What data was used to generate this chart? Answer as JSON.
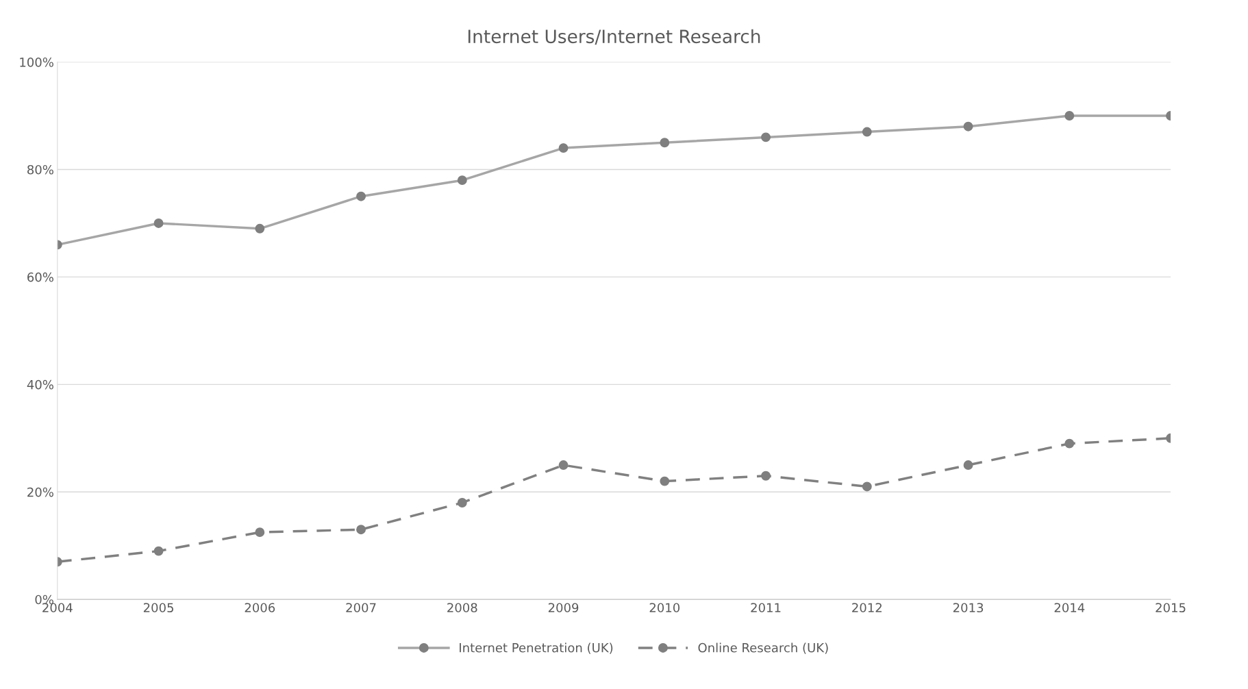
{
  "chart_data": {
    "type": "line",
    "title": "Internet Users/Internet Research",
    "x": [
      2004,
      2005,
      2006,
      2007,
      2008,
      2009,
      2010,
      2011,
      2012,
      2013,
      2014,
      2015
    ],
    "xlim": [
      2004,
      2015
    ],
    "xticks": [
      2004,
      2005,
      2006,
      2007,
      2008,
      2009,
      2010,
      2011,
      2012,
      2013,
      2014,
      2015
    ],
    "ylim": [
      0,
      100
    ],
    "yticks": [
      {
        "value": 0,
        "label": "0%"
      },
      {
        "value": 20,
        "label": "20%"
      },
      {
        "value": 40,
        "label": "40%"
      },
      {
        "value": 60,
        "label": "60%"
      },
      {
        "value": 80,
        "label": "80%"
      },
      {
        "value": 100,
        "label": "100%"
      }
    ],
    "grid": "y",
    "legend": "bottom",
    "marker": "circle",
    "series": [
      {
        "name": "Internet Penetration (UK)",
        "color": "#a6a6a6",
        "line_style": "solid",
        "values": [
          66,
          70,
          69,
          75,
          78,
          84,
          85,
          86,
          87,
          88,
          90,
          90
        ]
      },
      {
        "name": "Online Research (UK)",
        "color": "#808080",
        "line_style": "dashed",
        "values": [
          7,
          9,
          12.5,
          13,
          18,
          25,
          22,
          23,
          21,
          25,
          29,
          30
        ]
      }
    ]
  }
}
